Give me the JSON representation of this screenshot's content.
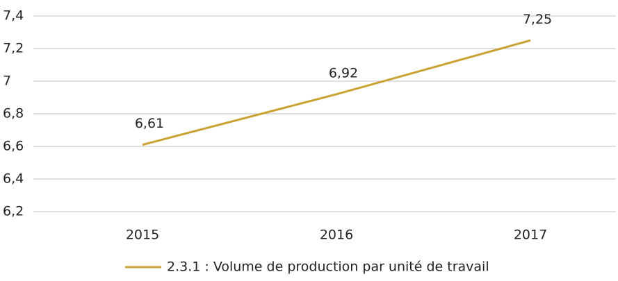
{
  "chart_data": {
    "type": "line",
    "categories": [
      "2015",
      "2016",
      "2017"
    ],
    "series": [
      {
        "name": "2.3.1 : Volume de production par unité de travail",
        "color": "#c9a232",
        "values": [
          6.61,
          6.92,
          7.25
        ],
        "value_labels": [
          "6,61",
          "6,92",
          "7,25"
        ]
      }
    ],
    "ylim": [
      6.2,
      7.4
    ],
    "yticks": [
      {
        "value": 6.2,
        "label": "6,2"
      },
      {
        "value": 6.4,
        "label": "6,4"
      },
      {
        "value": 6.6,
        "label": "6,6"
      },
      {
        "value": 6.8,
        "label": "6,8"
      },
      7,
      {
        "value": 7.2,
        "label": "7,2"
      },
      {
        "value": 7.4,
        "label": "7,4"
      }
    ],
    "grid": true,
    "legend": "bottom"
  }
}
